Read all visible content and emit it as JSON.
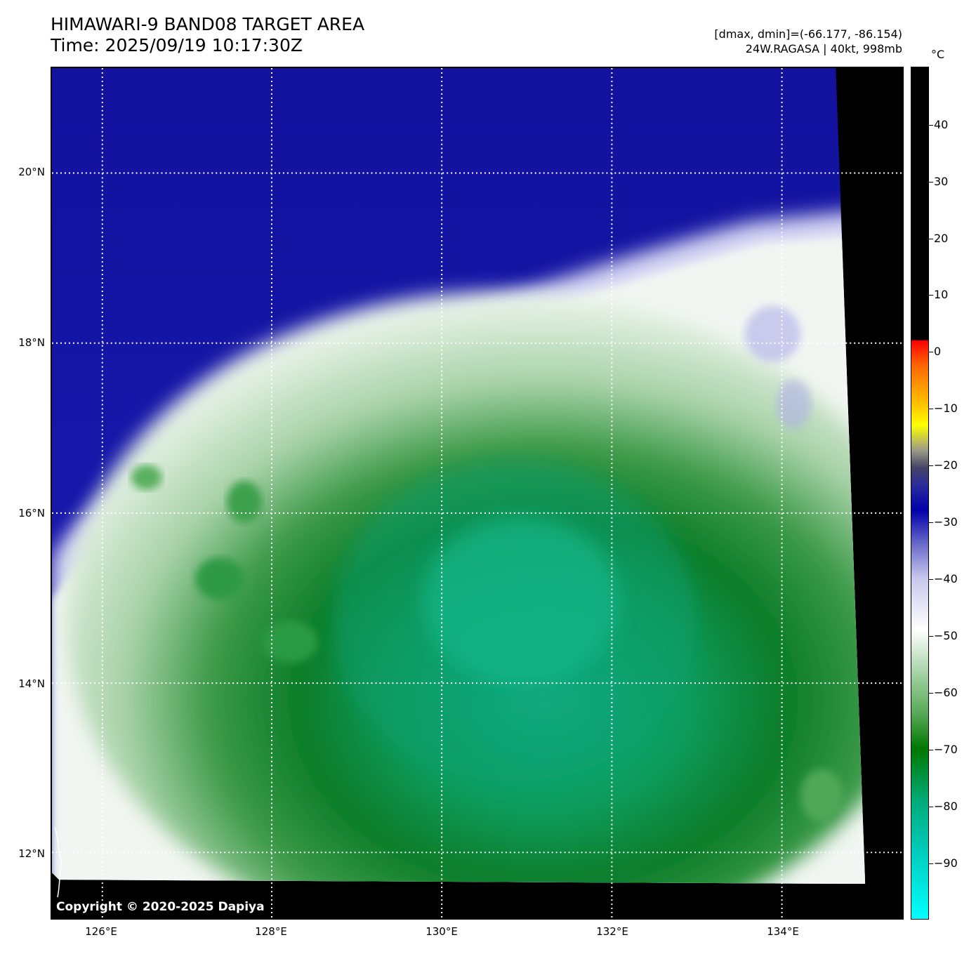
{
  "title": {
    "line1": "HIMAWARI-9 BAND08 TARGET AREA",
    "line2": "Time: 2025/09/19 10:17:30Z"
  },
  "info": {
    "range": "[dmax, dmin]=(-66.177, -86.154)",
    "storm": "24W.RAGASA | 40kt, 998mb"
  },
  "copyright": "Copyright © 2020-2025 Dapiya",
  "grid": {
    "latitudes": [
      "20°N",
      "18°N",
      "16°N",
      "14°N",
      "12°N"
    ],
    "longitudes": [
      "126°E",
      "128°E",
      "130°E",
      "132°E",
      "134°E"
    ]
  },
  "colorbar": {
    "unit": "°C",
    "ticks": [
      "40",
      "30",
      "20",
      "10",
      "0",
      "−10",
      "−20",
      "−30",
      "−40",
      "−50",
      "−60",
      "−70",
      "−80",
      "−90"
    ]
  },
  "colors": {
    "clear_sky": "#1010b0",
    "cloud_top_white": "#ffffff",
    "cold_green": "#0a8a2a",
    "coldest_teal": "#12b890",
    "no_data": "#000000"
  }
}
